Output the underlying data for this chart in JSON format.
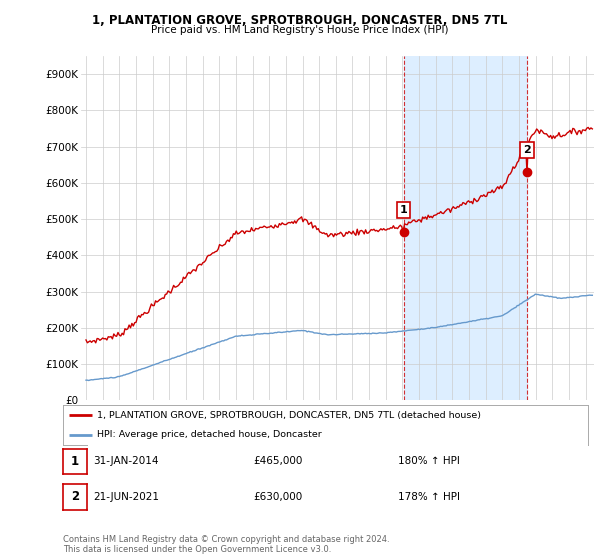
{
  "title_line1": "1, PLANTATION GROVE, SPROTBROUGH, DONCASTER, DN5 7TL",
  "title_line2": "Price paid vs. HM Land Registry's House Price Index (HPI)",
  "ylabel_ticks": [
    "£0",
    "£100K",
    "£200K",
    "£300K",
    "£400K",
    "£500K",
    "£600K",
    "£700K",
    "£800K",
    "£900K"
  ],
  "ytick_values": [
    0,
    100000,
    200000,
    300000,
    400000,
    500000,
    600000,
    700000,
    800000,
    900000
  ],
  "ylim": [
    0,
    950000
  ],
  "xlim_start": 1994.7,
  "xlim_end": 2025.5,
  "xticks": [
    1995,
    1996,
    1997,
    1998,
    1999,
    2000,
    2001,
    2002,
    2003,
    2004,
    2005,
    2006,
    2007,
    2008,
    2009,
    2010,
    2011,
    2012,
    2013,
    2014,
    2015,
    2016,
    2017,
    2018,
    2019,
    2020,
    2021,
    2022,
    2023,
    2024,
    2025
  ],
  "red_line_color": "#cc0000",
  "blue_line_color": "#6699cc",
  "shade_color": "#ddeeff",
  "transaction1_x": 2014.08,
  "transaction1_y": 465000,
  "transaction1_label": "1",
  "transaction2_x": 2021.47,
  "transaction2_y": 630000,
  "transaction2_label": "2",
  "vline1_x": 2014.08,
  "vline2_x": 2021.47,
  "legend_entry1": "1, PLANTATION GROVE, SPROTBROUGH, DONCASTER, DN5 7TL (detached house)",
  "legend_entry2": "HPI: Average price, detached house, Doncaster",
  "table_row1": [
    "1",
    "31-JAN-2014",
    "£465,000",
    "180% ↑ HPI"
  ],
  "table_row2": [
    "2",
    "21-JUN-2021",
    "£630,000",
    "178% ↑ HPI"
  ],
  "footnote": "Contains HM Land Registry data © Crown copyright and database right 2024.\nThis data is licensed under the Open Government Licence v3.0.",
  "background_color": "#ffffff",
  "grid_color": "#cccccc"
}
